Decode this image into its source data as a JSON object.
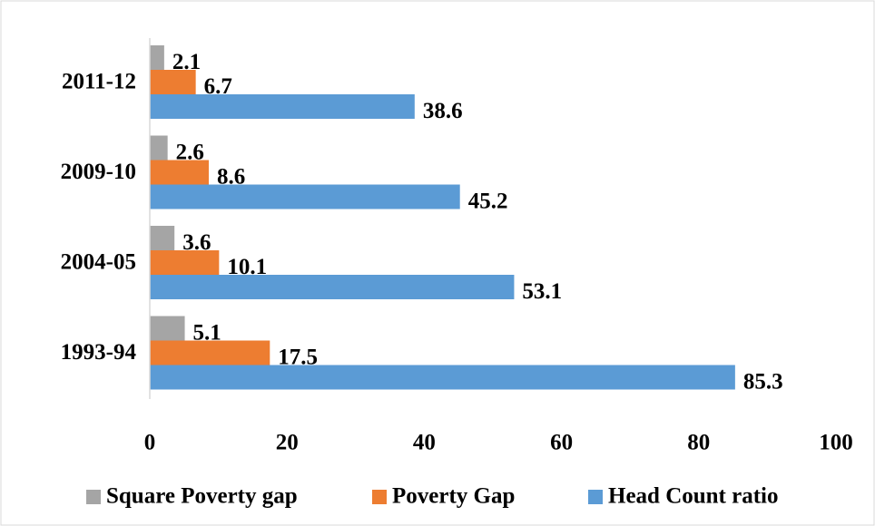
{
  "chart_data": {
    "type": "bar",
    "orientation": "horizontal",
    "categories": [
      "1993-94",
      "2004-05",
      "2009-10",
      "2011-12"
    ],
    "series": [
      {
        "name": "Square Poverty gap",
        "color": "#a5a5a5",
        "values": [
          5.1,
          3.6,
          2.6,
          2.1
        ]
      },
      {
        "name": "Poverty Gap",
        "color": "#ed7d31",
        "values": [
          17.5,
          10.1,
          8.6,
          6.7
        ]
      },
      {
        "name": "Head Count ratio",
        "color": "#5b9bd5",
        "values": [
          85.3,
          53.1,
          45.2,
          38.6
        ]
      }
    ],
    "xlim": [
      0,
      100
    ],
    "xticks": [
      0,
      20,
      40,
      60,
      80,
      100
    ],
    "grid": false,
    "legend": "bottom"
  }
}
